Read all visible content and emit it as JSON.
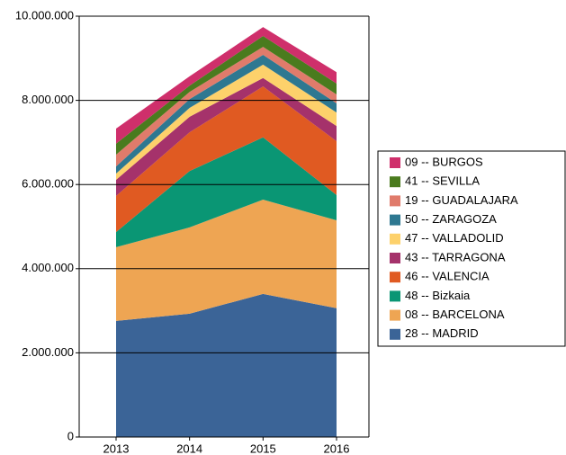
{
  "chart_data": {
    "type": "stacked_area",
    "categories": [
      "2013",
      "2014",
      "2015",
      "2016"
    ],
    "ylim": [
      0,
      10000000
    ],
    "yticks": [
      0,
      {
        "value": 2000000,
        "label": "2.000.000"
      },
      {
        "value": 4000000,
        "label": "4.000.000"
      },
      {
        "value": 6000000,
        "label": "6.000.000"
      },
      {
        "value": 8000000,
        "label": "8.000.000"
      },
      {
        "value": 10000000,
        "label": "10.000.000"
      }
    ],
    "grid": true,
    "legend": "right",
    "series": [
      {
        "name": "28 -- MADRID",
        "color": "#3b6497",
        "values": [
          2760000,
          2930000,
          3400000,
          3060000
        ]
      },
      {
        "name": "08 -- BARCELONA",
        "color": "#eea553",
        "values": [
          1750000,
          2050000,
          2240000,
          2090000
        ]
      },
      {
        "name": "48 -- Bizkaia",
        "color": "#0a9674",
        "values": [
          360000,
          1340000,
          1480000,
          600000
        ]
      },
      {
        "name": "46 -- VALENCIA",
        "color": "#e05a22",
        "values": [
          860000,
          920000,
          1210000,
          1280000
        ]
      },
      {
        "name": "43 -- TARRAGONA",
        "color": "#a5326b",
        "values": [
          380000,
          370000,
          200000,
          360000
        ]
      },
      {
        "name": "47 -- VALLADOLID",
        "color": "#fdd16b",
        "values": [
          150000,
          210000,
          320000,
          320000
        ]
      },
      {
        "name": "50 -- ZARAGOZA",
        "color": "#2e7891",
        "values": [
          170000,
          210000,
          230000,
          220000
        ]
      },
      {
        "name": "19 -- GUADALAJARA",
        "color": "#e07b6b",
        "values": [
          280000,
          170000,
          190000,
          210000
        ]
      },
      {
        "name": "41 -- SEVILLA",
        "color": "#4a7b1e",
        "values": [
          260000,
          150000,
          260000,
          260000
        ]
      },
      {
        "name": "09 -- BURGOS",
        "color": "#cf2f6b",
        "values": [
          360000,
          220000,
          210000,
          270000
        ]
      }
    ]
  }
}
